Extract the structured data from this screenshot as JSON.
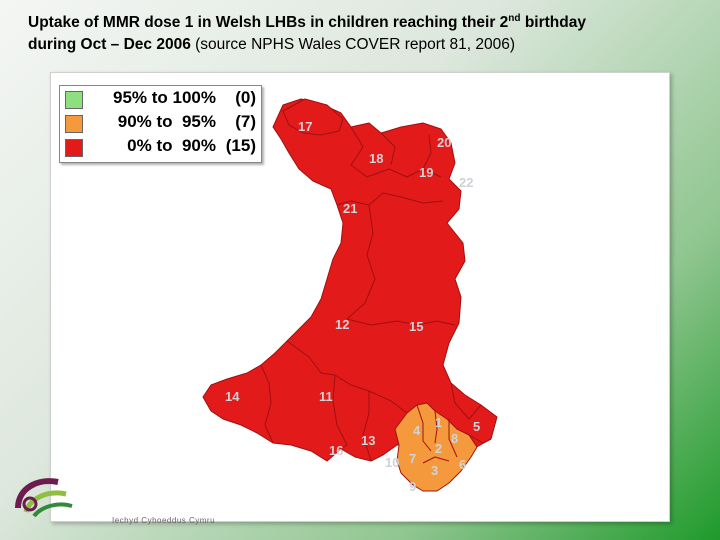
{
  "title": {
    "line1_start": "Uptake of MMR dose 1 in Welsh LHBs in children reaching their 2",
    "line1_sup": "nd",
    "line1_end": " birthday",
    "line2_bold": "during Oct – Dec 2006",
    "line2_rest": " (source NPHS Wales COVER report 81, 2006)"
  },
  "legend": [
    {
      "range": "95% to 100%",
      "count": "(0)",
      "color": "#8ee07e"
    },
    {
      "range": "90% to  95%",
      "count": "(7)",
      "color": "#f59a3c"
    },
    {
      "range": " 0% to  90%",
      "count": "(15)",
      "color": "#e31a1a"
    }
  ],
  "colors": {
    "under_90": "#e31a1a",
    "between_90_95": "#f59a3c",
    "over_95": "#8ee07e",
    "border": "#b01010",
    "label": "#cfd2d6"
  },
  "region_labels": {
    "r1": "1",
    "r2": "2",
    "r3": "3",
    "r4": "4",
    "r5": "5",
    "r6": "6",
    "r7": "7",
    "r8": "8",
    "r9": "9",
    "r10": "10",
    "r11": "11",
    "r12": "12",
    "r13": "13",
    "r14": "14",
    "r15": "15",
    "r16": "16",
    "r17": "17",
    "r18": "18",
    "r19": "19",
    "r20": "20",
    "r21": "21",
    "r22": "22"
  },
  "logo": {
    "caption": "Iechyd Cyhoeddus Cymru"
  }
}
